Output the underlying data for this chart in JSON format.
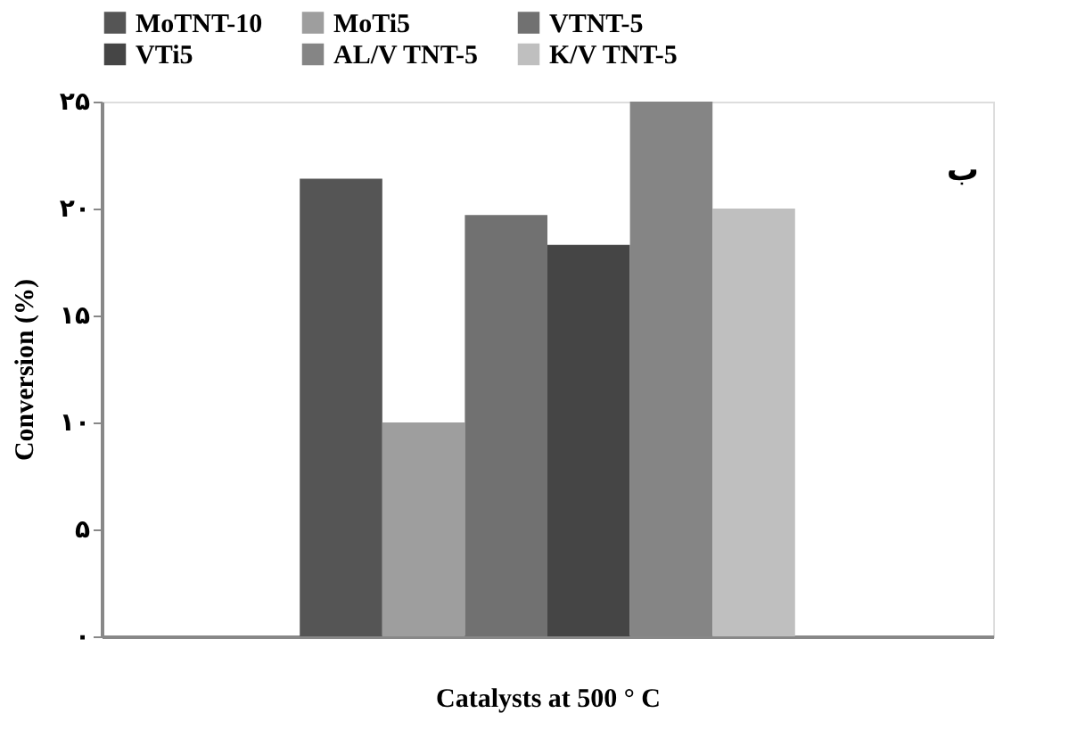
{
  "chart_data": {
    "type": "bar",
    "xlabel": "Catalysts at 500 ° C",
    "ylabel": "Conversion (%)",
    "categories": [
      null
    ],
    "series": [
      {
        "name": "MoTNT-10",
        "color": "#555555",
        "values": [
          21.4
        ]
      },
      {
        "name": "MoTi5",
        "color": "#9e9e9e",
        "values": [
          10
        ]
      },
      {
        "name": "VTNT-5",
        "color": "#717171",
        "values": [
          19.7
        ]
      },
      {
        "name": "VTi5",
        "color": "#454545",
        "values": [
          18.3
        ]
      },
      {
        "name": "AL/V TNT-5",
        "color": "#858585",
        "values": [
          25
        ]
      },
      {
        "name": "K/V TNT-5",
        "color": "#bfbfbf",
        "values": [
          20
        ]
      }
    ],
    "ylim": [
      0,
      25
    ],
    "yticks": [
      {
        "value": 0,
        "label": "۰"
      },
      {
        "value": 5,
        "label": "۵"
      },
      {
        "value": 10,
        "label": "۱۰"
      },
      {
        "value": 15,
        "label": "۱۵"
      },
      {
        "value": 20,
        "label": "۲۰"
      },
      {
        "value": 25,
        "label": "۲۵"
      }
    ],
    "grid": false,
    "legend": "top",
    "annotations": [
      "ب"
    ]
  }
}
